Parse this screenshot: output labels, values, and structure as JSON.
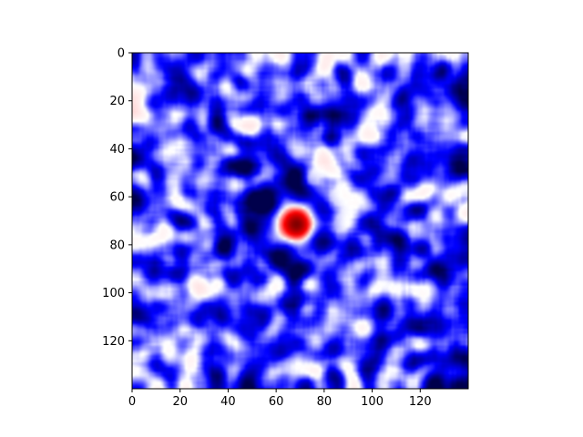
{
  "chart_data": {
    "type": "heatmap",
    "title": "",
    "xlabel": "",
    "ylabel": "",
    "xlim": [
      0,
      140
    ],
    "ylim": [
      140,
      0
    ],
    "y_axis_inverted": true,
    "grid": false,
    "legend": "none",
    "colormap": "seismic (blue → white → red)",
    "x_ticks": [
      0,
      20,
      40,
      60,
      80,
      100,
      120
    ],
    "y_ticks": [
      0,
      20,
      40,
      60,
      80,
      100,
      120
    ],
    "x_tick_labels": [
      "0",
      "20",
      "40",
      "60",
      "80",
      "100",
      "120"
    ],
    "y_tick_labels": [
      "0",
      "20",
      "40",
      "60",
      "80",
      "100",
      "120"
    ],
    "features": [
      {
        "kind": "peak",
        "sign": "positive",
        "x": 68,
        "y": 71,
        "value": 1.0
      },
      {
        "kind": "ring",
        "sign": "negative",
        "center_x": 64,
        "center_y": 70,
        "value": -0.7
      },
      {
        "kind": "blob",
        "sign": "negative",
        "x": 55,
        "y": 60,
        "value": -1.0
      },
      {
        "kind": "blob",
        "sign": "negative",
        "x": 76,
        "y": 76,
        "value": -0.9
      },
      {
        "kind": "blob",
        "sign": "negative",
        "x": 86,
        "y": 25,
        "value": -0.7
      },
      {
        "kind": "blob",
        "sign": "negative",
        "x": 138,
        "y": 45,
        "value": -0.8
      },
      {
        "kind": "blob",
        "sign": "negative",
        "x": 110,
        "y": 78,
        "value": -0.8
      }
    ],
    "colors": {
      "negative_extreme": "#00004c",
      "negative": "#0000ff",
      "neutral": "#ffffff",
      "positive": "#ff0000",
      "positive_extreme": "#800000"
    }
  }
}
